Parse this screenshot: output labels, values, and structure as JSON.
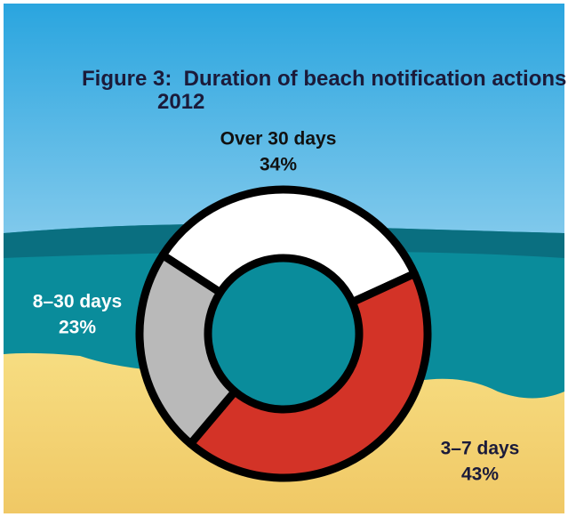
{
  "chart_data": {
    "type": "donut",
    "title": "Figure 3:  Duration of beach notification actions in 2012",
    "categories": [
      "Over 30 days",
      "3–7 days",
      "8–30 days"
    ],
    "values": [
      34,
      43,
      23
    ],
    "value_labels": [
      "34%",
      "43%",
      "23%"
    ],
    "colors": [
      "#ffffff",
      "#d33327",
      "#b9b9b9"
    ]
  }
}
